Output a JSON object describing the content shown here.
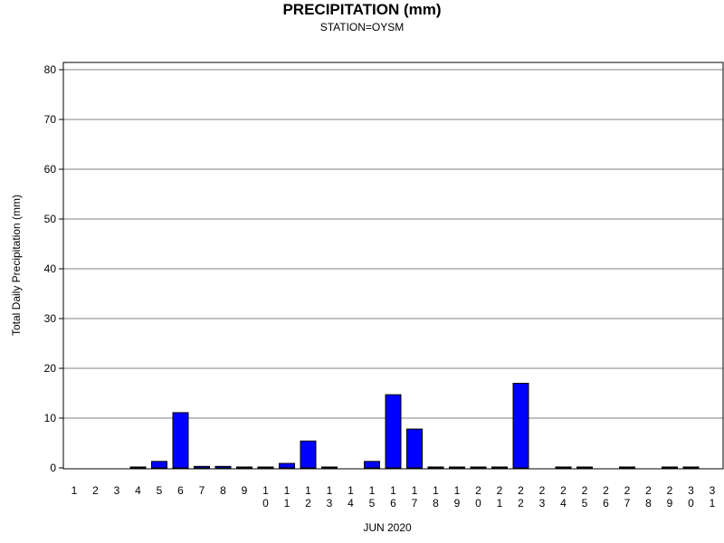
{
  "chart_data": {
    "type": "bar",
    "title": "PRECIPITATION (mm)",
    "subtitle": "STATION=OYSM",
    "xlabel": "JUN 2020",
    "ylabel": "Total Daily Precipitation (mm)",
    "ylim": [
      0,
      80
    ],
    "yticks": [
      0,
      10,
      20,
      30,
      40,
      50,
      60,
      70,
      80
    ],
    "grid": true,
    "bar_color": "#0000ff",
    "categories": [
      "1",
      "2",
      "3",
      "4",
      "5",
      "6",
      "7",
      "8",
      "9",
      "10",
      "11",
      "12",
      "13",
      "14",
      "15",
      "16",
      "17",
      "18",
      "19",
      "20",
      "21",
      "22",
      "23",
      "24",
      "25",
      "26",
      "27",
      "28",
      "29",
      "30",
      "31"
    ],
    "values": [
      null,
      null,
      null,
      0.1,
      1.3,
      11.1,
      0.3,
      0.3,
      0.1,
      0.1,
      0.9,
      5.4,
      0.1,
      null,
      1.3,
      14.7,
      7.8,
      0.1,
      0.1,
      0.1,
      0.1,
      17.0,
      null,
      0.1,
      0.1,
      null,
      0.1,
      null,
      0.1,
      0.1,
      null
    ]
  }
}
